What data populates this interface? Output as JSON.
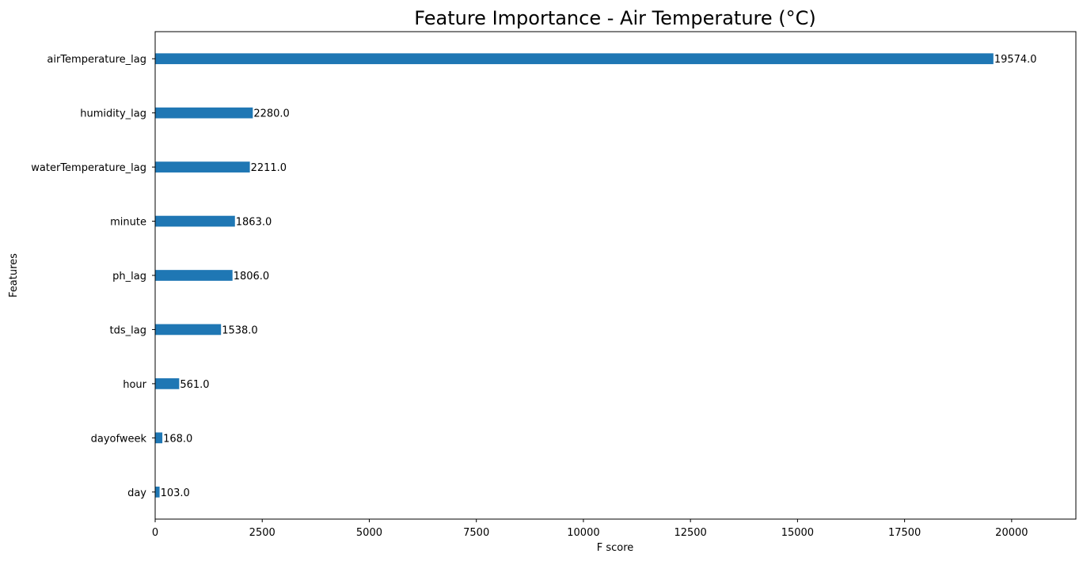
{
  "chart_data": {
    "type": "bar",
    "orientation": "horizontal",
    "title": "Feature Importance - Air Temperature (°C)",
    "xlabel": "F score",
    "ylabel": "Features",
    "categories": [
      "airTemperature_lag",
      "humidity_lag",
      "waterTemperature_lag",
      "minute",
      "ph_lag",
      "tds_lag",
      "hour",
      "dayofweek",
      "day"
    ],
    "values": [
      19574.0,
      2280.0,
      2211.0,
      1863.0,
      1806.0,
      1538.0,
      561.0,
      168.0,
      103.0
    ],
    "value_labels": [
      "19574.0",
      "2280.0",
      "2211.0",
      "1863.0",
      "1806.0",
      "1538.0",
      "561.0",
      "168.0",
      "103.0"
    ],
    "xlim": [
      0,
      21500
    ],
    "xticks": [
      0,
      2500,
      5000,
      7500,
      10000,
      12500,
      15000,
      17500,
      20000
    ],
    "xtick_labels": [
      "0",
      "2500",
      "5000",
      "7500",
      "10000",
      "12500",
      "15000",
      "17500",
      "20000"
    ],
    "grid": false,
    "bar_color": "#1f77b4"
  }
}
